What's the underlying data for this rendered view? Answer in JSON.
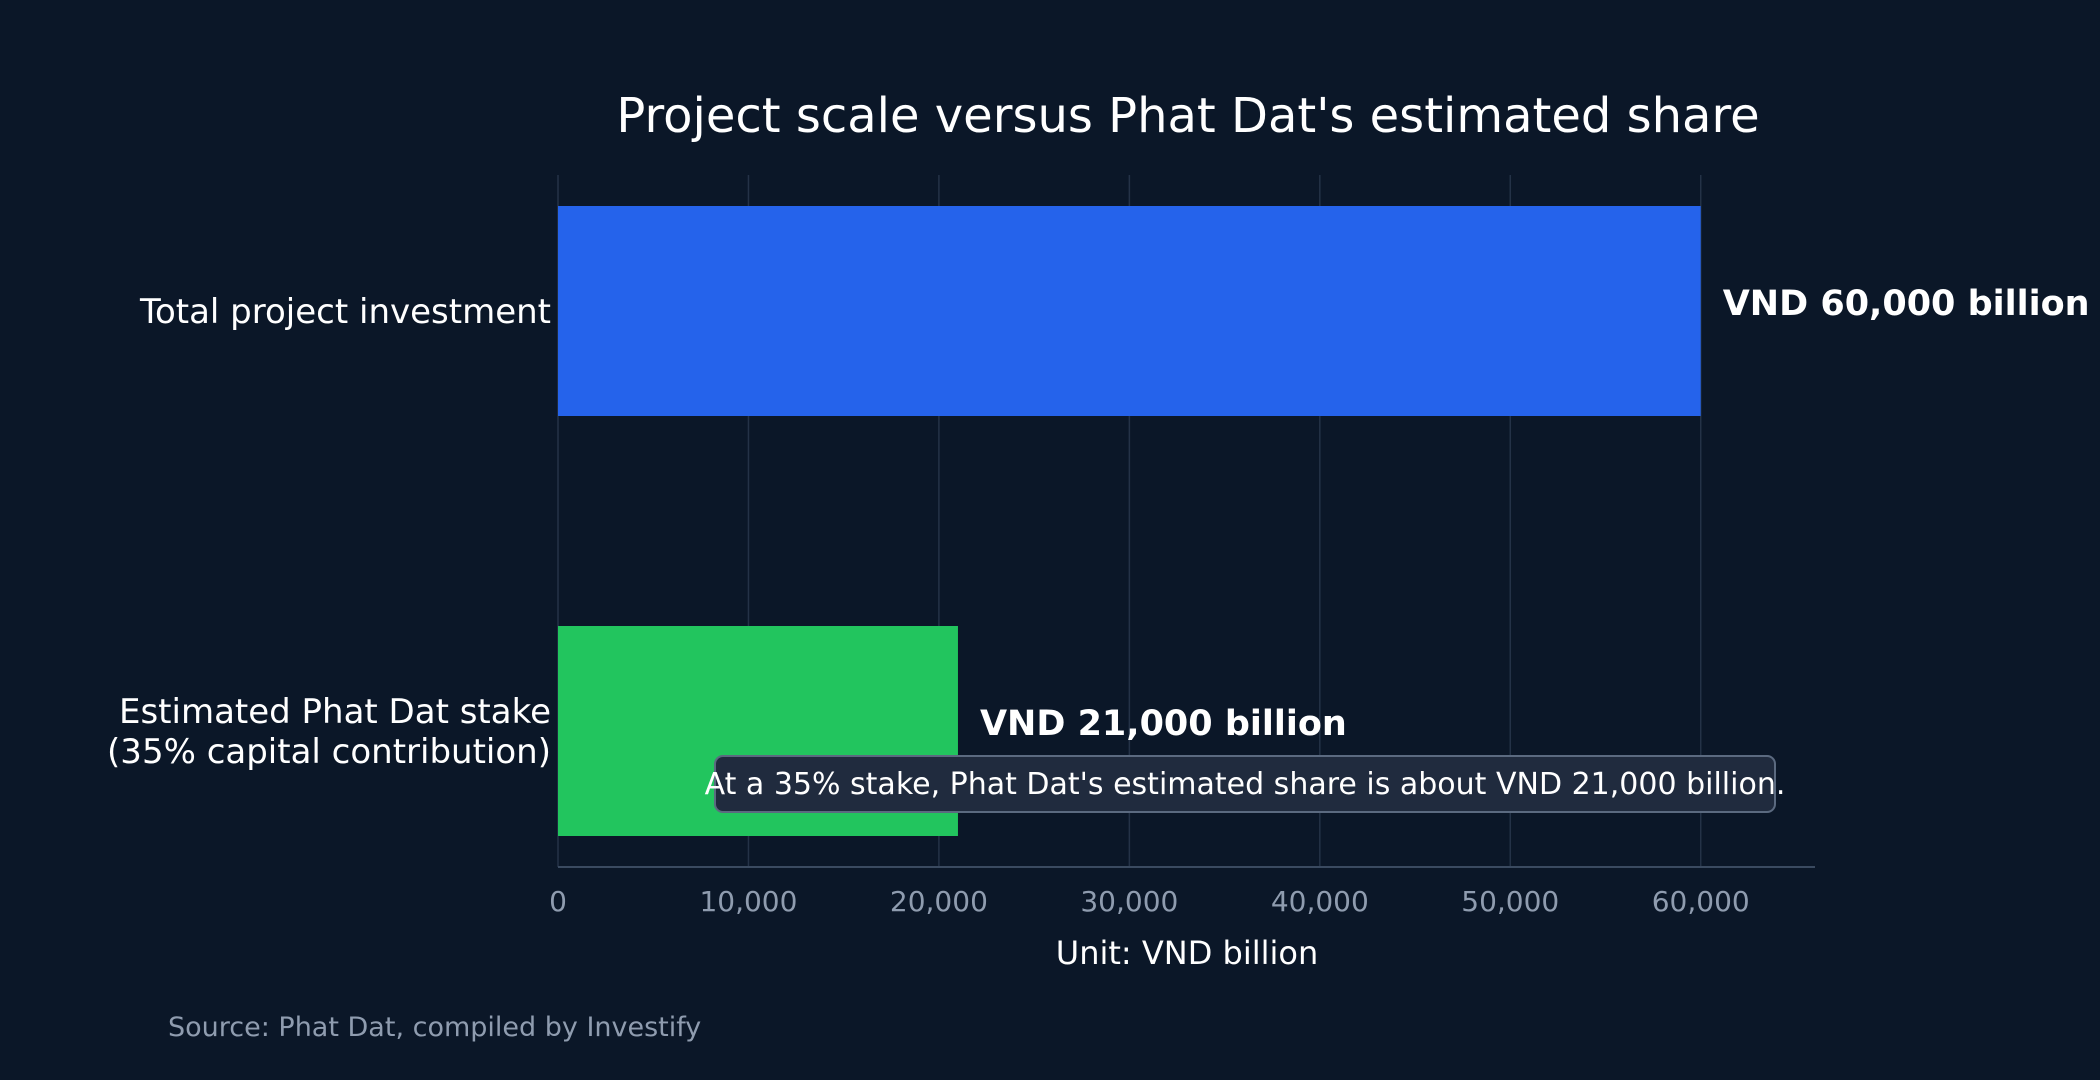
{
  "chart_data": {
    "type": "bar",
    "orientation": "horizontal",
    "title": "Project scale versus Phat Dat's estimated share",
    "categories": [
      [
        "Total project investment"
      ],
      [
        "Estimated Phat Dat stake",
        "(35% capital contribution)"
      ]
    ],
    "values": [
      60000,
      21000
    ],
    "data_labels": [
      "VND 60,000 billion",
      "VND 21,000 billion"
    ],
    "colors": [
      "#2563eb",
      "#22c55e"
    ],
    "xlabel": "Unit: VND billion",
    "xlim": [
      0,
      66000
    ],
    "x_ticks": [
      0,
      10000,
      20000,
      30000,
      40000,
      50000,
      60000
    ],
    "x_tick_labels": [
      "0",
      "10,000",
      "20,000",
      "30,000",
      "40,000",
      "50,000",
      "60,000"
    ],
    "grid": true,
    "annotation": "At a 35% stake, Phat Dat's estimated share is about VND 21,000 billion.",
    "source": "Source: Phat Dat, compiled by Investify"
  }
}
